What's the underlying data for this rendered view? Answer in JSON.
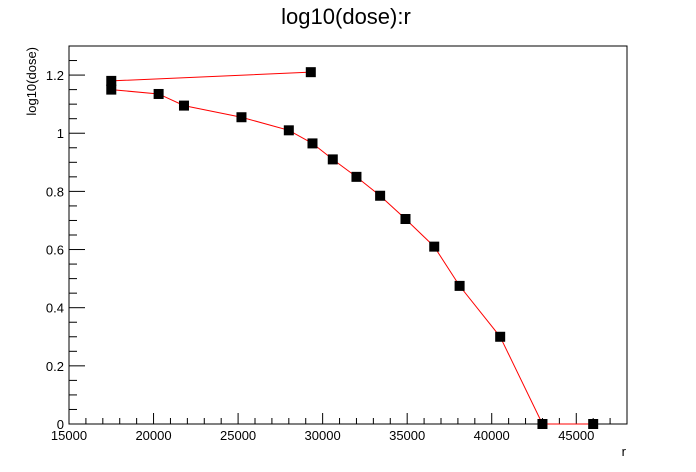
{
  "chart_data": {
    "type": "line",
    "title": "log10(dose):r",
    "xlabel": "r",
    "ylabel": "log10(dose)",
    "xlim": [
      15000,
      48000
    ],
    "ylim": [
      0,
      1.3
    ],
    "x_ticks": [
      15000,
      20000,
      25000,
      30000,
      35000,
      40000,
      45000
    ],
    "y_ticks": [
      0,
      0.2,
      0.4,
      0.6,
      0.8,
      1,
      1.2
    ],
    "x_tick_labels": [
      "15000",
      "20000",
      "25000",
      "30000",
      "35000",
      "40000",
      "45000"
    ],
    "y_tick_labels": [
      "0",
      "0.2",
      "0.4",
      "0.6",
      "0.8",
      "1",
      "1.2"
    ],
    "grid": false,
    "line_color": "#ff0000",
    "marker_color": "#000000",
    "marker": "square",
    "series": [
      {
        "x": [
          29300,
          17500,
          17500,
          20300,
          21800,
          25200,
          28000,
          29400,
          30600,
          32000,
          33400,
          34900,
          36600,
          38100,
          40500,
          43000,
          46000
        ],
        "y": [
          1.21,
          1.18,
          1.15,
          1.135,
          1.095,
          1.055,
          1.01,
          0.965,
          0.91,
          0.85,
          0.785,
          0.705,
          0.61,
          0.475,
          0.3,
          0.0,
          0.0
        ]
      }
    ]
  }
}
